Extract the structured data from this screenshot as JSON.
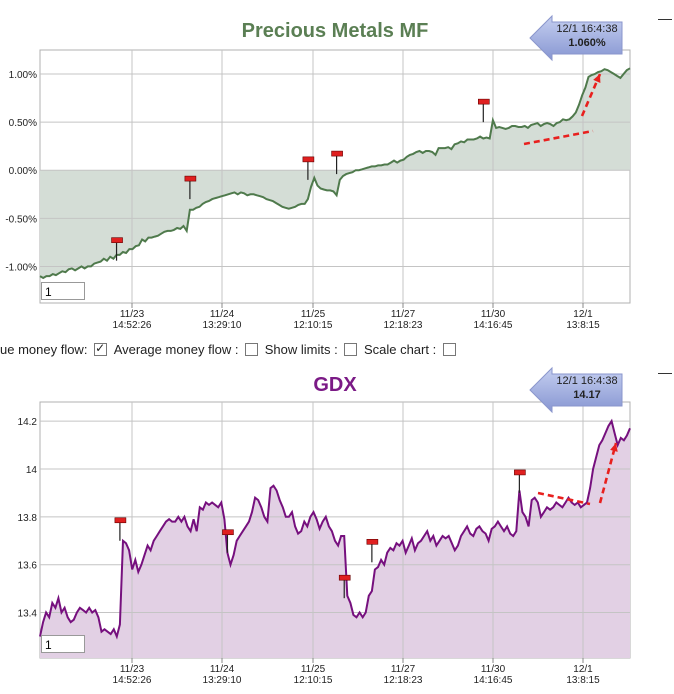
{
  "charts": {
    "top": {
      "title": "Precious Metals MF",
      "tooltip": {
        "time": "12/1 16:4:38",
        "value": "1.060%"
      },
      "count_value": "1",
      "fill": "#d4ddd6",
      "line": "#4f7a4c"
    },
    "bottom": {
      "title": "GDX",
      "tooltip": {
        "time": "12/1 16:4:38",
        "value": "14.17"
      },
      "count_value": "1",
      "fill": "#e2d0e4",
      "line": "#76107e"
    }
  },
  "controls": {
    "true_money_flow_label": "ue money flow:",
    "true_money_flow_checked": true,
    "average_money_flow_label": "Average money flow :",
    "average_money_flow_checked": false,
    "show_limits_label": "Show limits :",
    "show_limits_checked": false,
    "scale_chart_label": "Scale chart :",
    "scale_chart_checked": false
  },
  "x_ticks": [
    {
      "date": "11/23",
      "time": "14:52:26"
    },
    {
      "date": "11/24",
      "time": "13:29:10"
    },
    {
      "date": "11/25",
      "time": "12:10:15"
    },
    {
      "date": "11/27",
      "time": "12:18:23"
    },
    {
      "date": "11/30",
      "time": "14:16:45"
    },
    {
      "date": "12/1",
      "time": "13:8:15"
    }
  ],
  "chart_data": [
    {
      "type": "area",
      "title": "Precious Metals MF",
      "y_tick_labels": [
        "1.00%",
        "0.50%",
        "0.00%",
        "-0.50%",
        "-1.00%"
      ],
      "y_ticks": [
        1.0,
        0.5,
        0.0,
        -0.5,
        -1.0
      ],
      "ylim": [
        -1.38,
        1.25
      ],
      "x_tick_labels": [
        "11/23 14:52:26",
        "11/24 13:29:10",
        "11/25 12:10:15",
        "11/27 12:18:23",
        "11/30 14:16:45",
        "12/1 13:8:15"
      ],
      "baseline": 0.0,
      "grid": true,
      "series": [
        {
          "values": [
            -1.1,
            -1.12,
            -1.1,
            -1.1,
            -1.08,
            -1.09,
            -1.07,
            -1.05,
            -1.06,
            -1.03,
            -1.02,
            -1.04,
            -1.02,
            -1.0,
            -1.02,
            -1.0,
            -1.0,
            -0.97,
            -0.96,
            -0.95,
            -0.92,
            -0.94,
            -0.9,
            -0.92,
            -0.88,
            -0.88,
            -0.85,
            -0.86,
            -0.82,
            -0.82,
            -0.79,
            -0.78,
            -0.72,
            -0.74,
            -0.7,
            -0.7,
            -0.69,
            -0.68,
            -0.66,
            -0.64,
            -0.63,
            -0.63,
            -0.62,
            -0.6,
            -0.61,
            -0.58,
            -0.63,
            -0.41,
            -0.41,
            -0.39,
            -0.38,
            -0.35,
            -0.33,
            -0.32,
            -0.3,
            -0.29,
            -0.28,
            -0.27,
            -0.26,
            -0.25,
            -0.24,
            -0.23,
            -0.25,
            -0.23,
            -0.24,
            -0.26,
            -0.25,
            -0.25,
            -0.26,
            -0.27,
            -0.28,
            -0.3,
            -0.31,
            -0.32,
            -0.34,
            -0.36,
            -0.38,
            -0.39,
            -0.4,
            -0.39,
            -0.38,
            -0.36,
            -0.35,
            -0.35,
            -0.3,
            -0.17,
            -0.08,
            -0.16,
            -0.19,
            -0.2,
            -0.21,
            -0.21,
            -0.22,
            -0.26,
            -0.1,
            -0.06,
            -0.04,
            -0.03,
            -0.02,
            0.0,
            0.0,
            0.01,
            0.02,
            0.03,
            0.04,
            0.04,
            0.05,
            0.05,
            0.06,
            0.06,
            0.08,
            0.1,
            0.08,
            0.1,
            0.11,
            0.14,
            0.16,
            0.17,
            0.19,
            0.2,
            0.18,
            0.2,
            0.2,
            0.19,
            0.16,
            0.23,
            0.23,
            0.23,
            0.24,
            0.22,
            0.27,
            0.28,
            0.3,
            0.29,
            0.32,
            0.32,
            0.32,
            0.33,
            0.35,
            0.33,
            0.34,
            0.33,
            0.52,
            0.44,
            0.45,
            0.44,
            0.43,
            0.44,
            0.46,
            0.46,
            0.45,
            0.45,
            0.46,
            0.44,
            0.47,
            0.48,
            0.49,
            0.46,
            0.48,
            0.49,
            0.48,
            0.46,
            0.49,
            0.5,
            0.53,
            0.52,
            0.53,
            0.56,
            0.6,
            0.68,
            0.78,
            0.86,
            0.97,
            0.99,
            1.0,
            1.02,
            1.03,
            1.05,
            1.04,
            1.02,
            1.0,
            0.98,
            0.96,
            1.0,
            1.04,
            1.06
          ]
        }
      ],
      "flags": [
        {
          "index": 24,
          "value": -0.94
        },
        {
          "index": 47,
          "value": -0.3
        },
        {
          "index": 84,
          "value": -0.1
        },
        {
          "index": 93,
          "value": -0.04
        },
        {
          "index": 139,
          "value": 0.5
        }
      ],
      "annotation_arrows": [
        {
          "from": [
            0.3,
            0.4
          ],
          "to": [
            0.55,
            0.7
          ],
          "style": "dashed"
        },
        {
          "from": [
            0.9,
            1.0
          ],
          "to": [
            1.02,
            1.05
          ],
          "style": "dashed"
        }
      ]
    },
    {
      "type": "area",
      "title": "GDX",
      "y_tick_labels": [
        "14.2",
        "14",
        "13.8",
        "13.6",
        "13.4"
      ],
      "y_ticks": [
        14.2,
        14.0,
        13.8,
        13.6,
        13.4
      ],
      "ylim": [
        13.21,
        14.28
      ],
      "x_tick_labels": [
        "11/23 14:52:26",
        "11/24 13:29:10",
        "11/25 12:10:15",
        "11/27 12:18:23",
        "11/30 14:16:45",
        "12/1 13:8:15"
      ],
      "grid": true,
      "series": [
        {
          "values": [
            13.3,
            13.36,
            13.4,
            13.38,
            13.44,
            13.42,
            13.46,
            13.4,
            13.42,
            13.38,
            13.36,
            13.37,
            13.4,
            13.42,
            13.41,
            13.4,
            13.42,
            13.4,
            13.41,
            13.38,
            13.32,
            13.33,
            13.32,
            13.31,
            13.33,
            13.3,
            13.35,
            13.7,
            13.69,
            13.66,
            13.58,
            13.62,
            13.57,
            13.6,
            13.64,
            13.68,
            13.66,
            13.7,
            13.72,
            13.74,
            13.76,
            13.78,
            13.79,
            13.78,
            13.78,
            13.8,
            13.78,
            13.8,
            13.76,
            13.74,
            13.79,
            13.74,
            13.84,
            13.83,
            13.86,
            13.85,
            13.86,
            13.85,
            13.84,
            13.86,
            13.79,
            13.65,
            13.6,
            13.64,
            13.7,
            13.72,
            13.74,
            13.76,
            13.78,
            13.82,
            13.88,
            13.87,
            13.84,
            13.8,
            13.78,
            13.92,
            13.93,
            13.91,
            13.87,
            13.84,
            13.8,
            13.8,
            13.82,
            13.76,
            13.73,
            13.74,
            13.78,
            13.76,
            13.8,
            13.82,
            13.79,
            13.75,
            13.78,
            13.8,
            13.76,
            13.74,
            13.7,
            13.68,
            13.72,
            13.72,
            13.47,
            13.44,
            13.39,
            13.38,
            13.4,
            13.38,
            13.4,
            13.47,
            13.49,
            13.58,
            13.59,
            13.62,
            13.6,
            13.65,
            13.67,
            13.66,
            13.69,
            13.68,
            13.7,
            13.65,
            13.68,
            13.71,
            13.66,
            13.69,
            13.7,
            13.72,
            13.74,
            13.7,
            13.72,
            13.68,
            13.7,
            13.72,
            13.71,
            13.72,
            13.69,
            13.66,
            13.68,
            13.72,
            13.74,
            13.76,
            13.73,
            13.72,
            13.75,
            13.76,
            13.74,
            13.73,
            13.7,
            13.75,
            13.76,
            13.78,
            13.76,
            13.74,
            13.76,
            13.73,
            13.72,
            13.74,
            13.91,
            13.82,
            13.8,
            13.76,
            13.87,
            13.88,
            13.86,
            13.8,
            13.82,
            13.84,
            13.83,
            13.84,
            13.86,
            13.85,
            13.84,
            13.86,
            13.88,
            13.86,
            13.85,
            13.86,
            13.84,
            13.85,
            13.86,
            13.92,
            14.0,
            14.05,
            14.1,
            14.12,
            14.15,
            14.18,
            14.2,
            14.15,
            14.1,
            14.13,
            14.12,
            14.14,
            14.17
          ]
        }
      ],
      "flags": [
        {
          "index": 26,
          "value": 13.7
        },
        {
          "index": 61,
          "value": 13.65
        },
        {
          "index": 99,
          "value": 13.46
        },
        {
          "index": 108,
          "value": 13.61
        },
        {
          "index": 156,
          "value": 13.9
        }
      ],
      "annotation_arrows": [
        {
          "from": [
            13.9,
            13.85
          ],
          "to": [
            0,
            0
          ],
          "style": "dashed"
        },
        {
          "from": [
            13.86,
            13.92
          ],
          "to": [
            14.0,
            14.12
          ],
          "style": "dashed"
        }
      ]
    }
  ]
}
